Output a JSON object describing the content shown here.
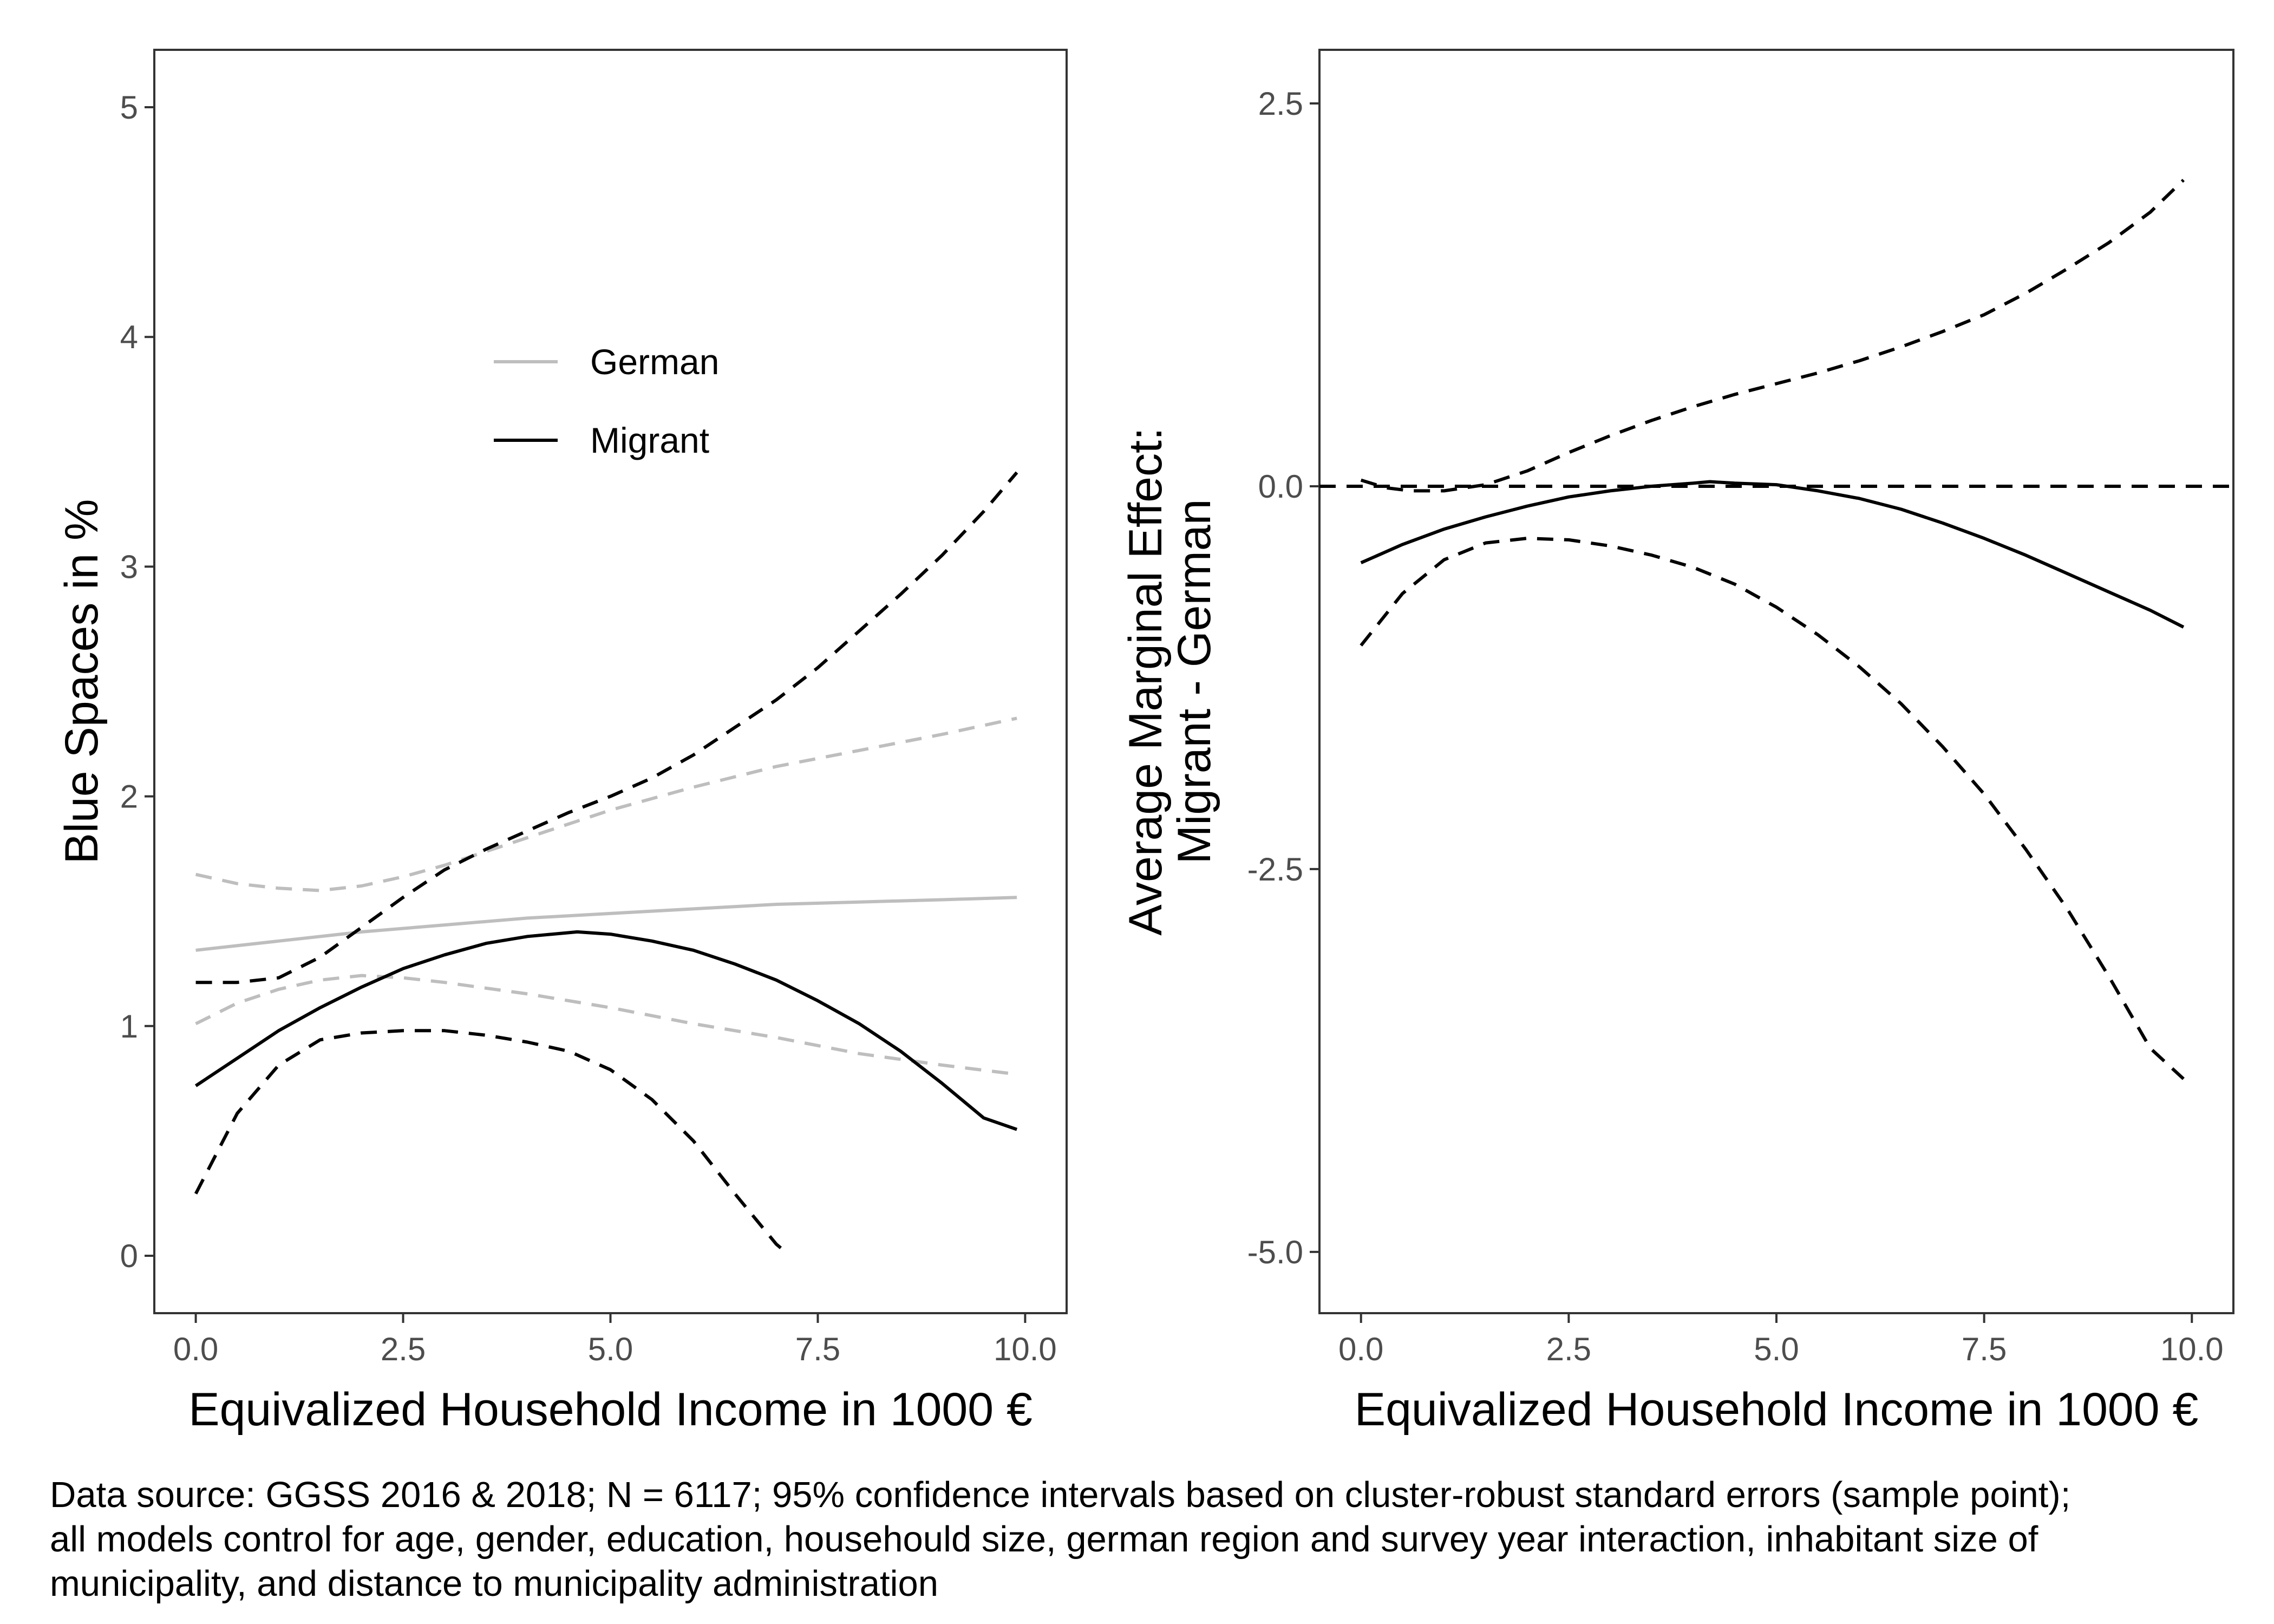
{
  "caption": {
    "line1": "Data source: GGSS 2016 & 2018; N = 6117; 95% confidence intervals based on cluster-robust standard errors (sample point);",
    "line2": "all models control for age, gender, education, househould size, german region and survey year interaction, inhabitant size of",
    "line3": "municipality, and distance to municipality administration"
  },
  "colors": {
    "german": "#bebebe",
    "migrant": "#000000",
    "panel_border": "#333333",
    "tick": "#4d4d4d"
  },
  "chart_data": [
    {
      "type": "line",
      "xlabel": "Equivalized Household Income in 1000 €",
      "ylabel": "Blue Spaces in %",
      "xlim": [
        -0.5,
        10.5
      ],
      "ylim": [
        -0.25,
        5.25
      ],
      "x_ticks": [
        "0.0",
        "2.5",
        "5.0",
        "7.5",
        "10.0"
      ],
      "y_ticks": [
        "0",
        "1",
        "2",
        "3",
        "4",
        "5"
      ],
      "grid": false,
      "legend": {
        "position": "top-center",
        "entries": [
          "German",
          "Migrant"
        ]
      },
      "series": [
        {
          "name": "German",
          "role": "estimate",
          "dash": false,
          "color": "#bebebe",
          "x": [
            0,
            1,
            2,
            3,
            4,
            5,
            6,
            7,
            8,
            9,
            9.9
          ],
          "y": [
            1.33,
            1.37,
            1.41,
            1.44,
            1.47,
            1.49,
            1.51,
            1.53,
            1.54,
            1.55,
            1.56
          ]
        },
        {
          "name": "German",
          "role": "upper",
          "dash": true,
          "color": "#bebebe",
          "x": [
            0,
            0.5,
            1,
            1.5,
            2,
            2.5,
            3,
            4,
            5,
            6,
            7,
            8,
            9,
            9.9
          ],
          "y": [
            1.66,
            1.62,
            1.6,
            1.59,
            1.61,
            1.65,
            1.7,
            1.82,
            1.94,
            2.04,
            2.13,
            2.2,
            2.27,
            2.34
          ]
        },
        {
          "name": "German",
          "role": "lower",
          "dash": true,
          "color": "#bebebe",
          "x": [
            0,
            0.5,
            1,
            1.5,
            2,
            2.5,
            3,
            4,
            5,
            6,
            7,
            8,
            9,
            9.9
          ],
          "y": [
            1.01,
            1.1,
            1.16,
            1.2,
            1.22,
            1.21,
            1.19,
            1.14,
            1.08,
            1.01,
            0.95,
            0.88,
            0.83,
            0.79
          ]
        },
        {
          "name": "Migrant",
          "role": "estimate",
          "dash": false,
          "color": "#000000",
          "x": [
            0,
            0.5,
            1,
            1.5,
            2,
            2.5,
            3,
            3.5,
            4,
            4.6,
            5,
            5.5,
            6,
            6.5,
            7,
            7.5,
            8,
            8.5,
            9,
            9.5,
            9.9
          ],
          "y": [
            0.74,
            0.86,
            0.98,
            1.08,
            1.17,
            1.25,
            1.31,
            1.36,
            1.39,
            1.41,
            1.4,
            1.37,
            1.33,
            1.27,
            1.2,
            1.11,
            1.01,
            0.89,
            0.75,
            0.6,
            0.55
          ]
        },
        {
          "name": "Migrant",
          "role": "upper",
          "dash": true,
          "color": "#000000",
          "x": [
            0,
            0.5,
            1,
            1.5,
            2,
            2.5,
            3,
            3.5,
            4,
            4.5,
            5,
            5.5,
            6,
            6.5,
            7,
            7.5,
            8,
            8.5,
            9,
            9.5,
            9.9
          ],
          "y": [
            1.19,
            1.19,
            1.21,
            1.3,
            1.43,
            1.56,
            1.68,
            1.77,
            1.85,
            1.93,
            2.0,
            2.08,
            2.18,
            2.3,
            2.42,
            2.56,
            2.72,
            2.88,
            3.05,
            3.24,
            3.41
          ]
        },
        {
          "name": "Migrant",
          "role": "lower",
          "dash": true,
          "color": "#000000",
          "x": [
            0,
            0.5,
            1,
            1.5,
            2,
            2.5,
            3,
            3.5,
            4,
            4.5,
            5,
            5.5,
            6,
            6.5,
            7,
            7.1
          ],
          "y": [
            0.27,
            0.62,
            0.83,
            0.94,
            0.97,
            0.98,
            0.98,
            0.96,
            0.93,
            0.89,
            0.81,
            0.68,
            0.5,
            0.27,
            0.05,
            0.02
          ]
        }
      ]
    },
    {
      "type": "line",
      "xlabel": "Equivalized Household Income in 1000 €",
      "ylabel": [
        "Average Marginal Effect:",
        "Migrant - German"
      ],
      "xlim": [
        -0.5,
        10.5
      ],
      "ylim": [
        -5.4,
        2.85
      ],
      "x_ticks": [
        "0.0",
        "2.5",
        "5.0",
        "7.5",
        "10.0"
      ],
      "y_ticks": [
        "2.5",
        "0.0",
        "-2.5",
        "-5.0"
      ],
      "grid": false,
      "reference_line": {
        "y": 0,
        "dash": true
      },
      "series": [
        {
          "name": "",
          "role": "estimate",
          "dash": false,
          "color": "#000000",
          "x": [
            0,
            0.5,
            1,
            1.5,
            2,
            2.5,
            3,
            3.5,
            4,
            4.2,
            4.5,
            5,
            5.5,
            6,
            6.5,
            7,
            7.5,
            8,
            8.5,
            9,
            9.5,
            9.9
          ],
          "y": [
            -0.5,
            -0.38,
            -0.28,
            -0.2,
            -0.13,
            -0.07,
            -0.03,
            0.0,
            0.02,
            0.03,
            0.02,
            0.01,
            -0.03,
            -0.08,
            -0.15,
            -0.24,
            -0.34,
            -0.45,
            -0.57,
            -0.69,
            -0.81,
            -0.92
          ]
        },
        {
          "name": "",
          "role": "upper",
          "dash": true,
          "color": "#000000",
          "x": [
            0,
            0.3,
            0.6,
            1,
            1.5,
            2,
            2.5,
            3,
            3.5,
            4,
            4.5,
            5,
            5.5,
            6,
            6.5,
            7,
            7.5,
            8,
            8.5,
            9,
            9.5,
            9.9
          ],
          "y": [
            0.04,
            -0.01,
            -0.03,
            -0.03,
            0.01,
            0.1,
            0.22,
            0.33,
            0.43,
            0.52,
            0.6,
            0.67,
            0.74,
            0.82,
            0.91,
            1.01,
            1.12,
            1.26,
            1.42,
            1.59,
            1.79,
            2.0
          ]
        },
        {
          "name": "",
          "role": "lower",
          "dash": true,
          "color": "#000000",
          "x": [
            0,
            0.5,
            1,
            1.5,
            2,
            2.5,
            3,
            3.5,
            4,
            4.5,
            5,
            5.5,
            6,
            6.5,
            7,
            7.5,
            8,
            8.5,
            9,
            9.5,
            9.9
          ],
          "y": [
            -1.04,
            -0.7,
            -0.48,
            -0.37,
            -0.34,
            -0.35,
            -0.39,
            -0.45,
            -0.53,
            -0.64,
            -0.79,
            -0.97,
            -1.18,
            -1.42,
            -1.7,
            -2.01,
            -2.37,
            -2.76,
            -3.2,
            -3.67,
            -3.87
          ]
        }
      ]
    }
  ]
}
